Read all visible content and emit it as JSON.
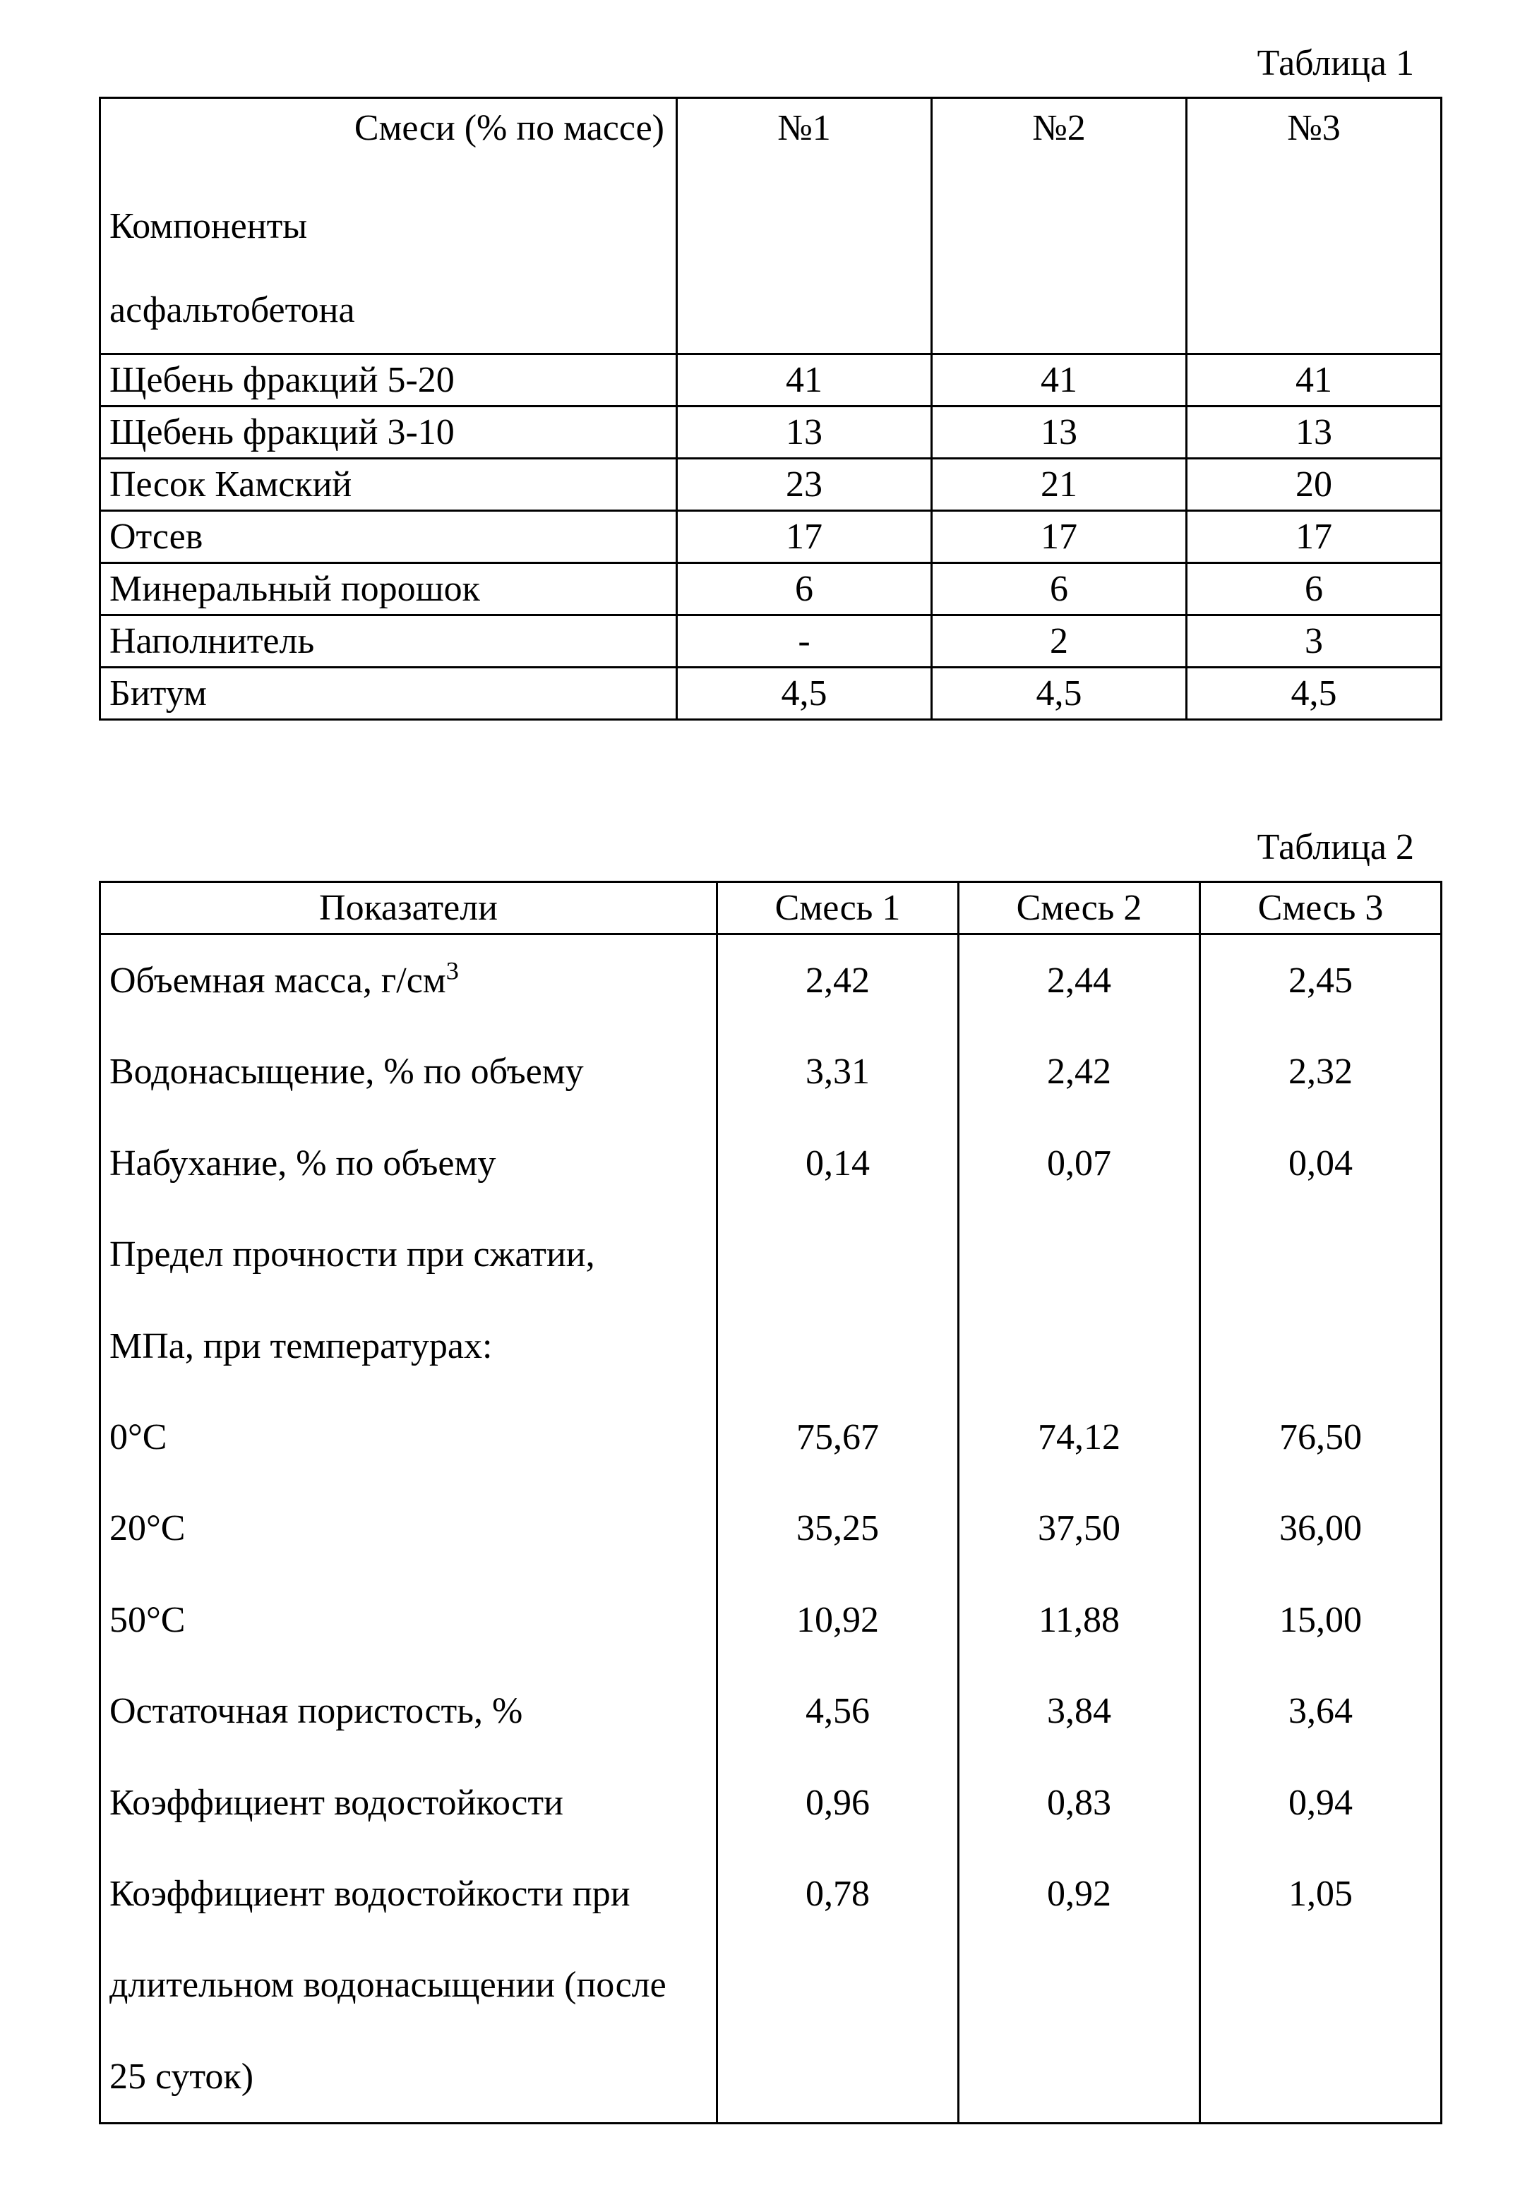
{
  "colors": {
    "text": "#000000",
    "border": "#000000",
    "background": "#ffffff"
  },
  "typography": {
    "family": "Times New Roman",
    "base_pt": 39
  },
  "table1": {
    "caption": "Таблица 1",
    "col_widths_pct": [
      43,
      19,
      19,
      19
    ],
    "header_top": "Смеси (% по массе)",
    "header_mid": "Компоненты",
    "header_bot": "асфальтобетона",
    "cols": [
      "№1",
      "№2",
      "№3"
    ],
    "rows": [
      {
        "label": "Щебень фракций 5-20",
        "v": [
          "41",
          "41",
          "41"
        ]
      },
      {
        "label": "Щебень фракций 3-10",
        "v": [
          "13",
          "13",
          "13"
        ]
      },
      {
        "label": "Песок Камский",
        "v": [
          "23",
          "21",
          "20"
        ]
      },
      {
        "label": "Отсев",
        "v": [
          "17",
          "17",
          "17"
        ]
      },
      {
        "label": "Минеральный порошок",
        "v": [
          "6",
          "6",
          "6"
        ]
      },
      {
        "label": "Наполнитель",
        "v": [
          "-",
          "2",
          "3"
        ]
      },
      {
        "label": "Битум",
        "v": [
          "4,5",
          "4,5",
          "4,5"
        ]
      }
    ]
  },
  "table2": {
    "caption": "Таблица 2",
    "col_widths_pct": [
      46,
      18,
      18,
      18
    ],
    "header_label": "Показатели",
    "cols": [
      "Смесь 1",
      "Смесь 2",
      "Смесь 3"
    ],
    "rows": [
      {
        "label_html": "Объемная масса, г/см<sup>3</sup>",
        "v": [
          "2,42",
          "2,44",
          "2,45"
        ]
      },
      {
        "label_html": "Водонасыщение, % по объему",
        "v": [
          "3,31",
          "2,42",
          "2,32"
        ]
      },
      {
        "label_html": "Набухание, % по объему",
        "v": [
          "0,14",
          "0,07",
          "0,04"
        ]
      },
      {
        "label_html": "Предел прочности при сжатии,",
        "v": [
          "",
          "",
          ""
        ]
      },
      {
        "label_html": "МПа, при температурах:",
        "v": [
          "",
          "",
          ""
        ]
      },
      {
        "label_html": "0°С",
        "v": [
          "75,67",
          "74,12",
          "76,50"
        ]
      },
      {
        "label_html": "20°С",
        "v": [
          "35,25",
          "37,50",
          "36,00"
        ]
      },
      {
        "label_html": "50°С",
        "v": [
          "10,92",
          "11,88",
          "15,00"
        ]
      },
      {
        "label_html": "Остаточная пористость, %",
        "v": [
          "4,56",
          "3,84",
          "3,64"
        ]
      },
      {
        "label_html": "Коэффициент водостойкости",
        "v": [
          "0,96",
          "0,83",
          "0,94"
        ]
      },
      {
        "label_html": "Коэффициент водостойкости при",
        "v": [
          "0,78",
          "0,92",
          "1,05"
        ]
      },
      {
        "label_html": "длительном водонасыщении (после",
        "v": [
          "",
          "",
          ""
        ]
      },
      {
        "label_html": "25 суток)",
        "v": [
          "",
          "",
          ""
        ]
      }
    ]
  }
}
